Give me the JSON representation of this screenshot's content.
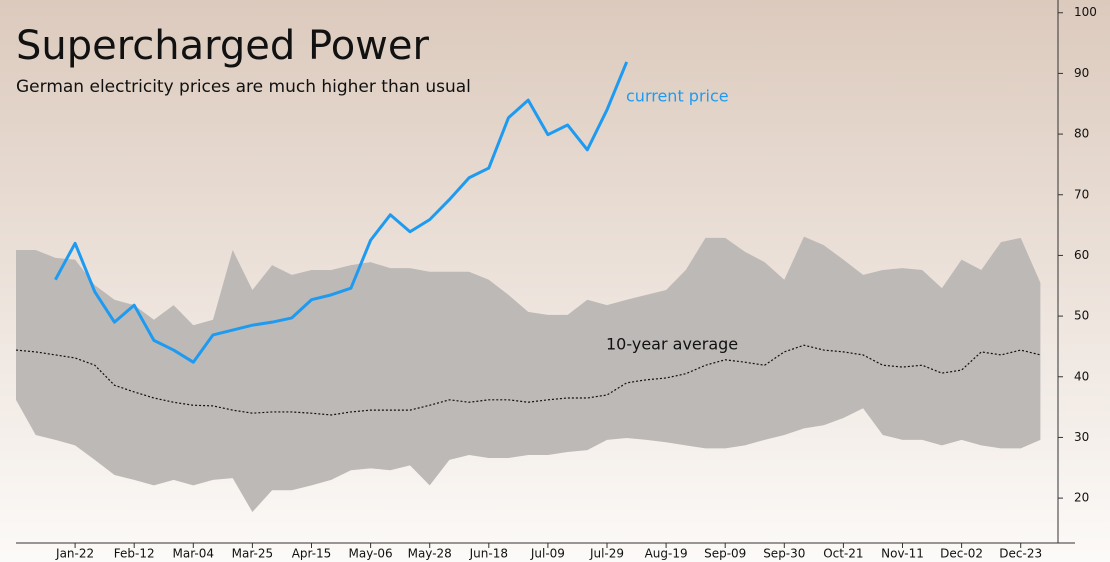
{
  "chart_data": {
    "type": "line",
    "title": "Supercharged Power",
    "subtitle": "German electricity prices are much higher than usual",
    "categories": [
      null,
      null,
      null,
      "Jan-22",
      null,
      null,
      "Feb-12",
      null,
      null,
      "Mar-04",
      null,
      null,
      "Mar-25",
      null,
      null,
      "Apr-15",
      null,
      null,
      "May-06",
      null,
      null,
      "May-28",
      null,
      null,
      "Jun-18",
      null,
      null,
      "Jul-09",
      null,
      null,
      "Jul-29",
      null,
      null,
      "Aug-19",
      null,
      null,
      "Sep-09",
      null,
      null,
      "Sep-30",
      null,
      null,
      "Oct-21",
      null,
      null,
      "Nov-11",
      null,
      null,
      "Dec-02",
      null,
      null,
      "Dec-23",
      null
    ],
    "series": [
      {
        "name": "current price",
        "color": "#1e9bf0",
        "values": [
          null,
          null,
          56,
          62,
          54,
          49,
          51.8,
          46,
          44.4,
          42.4,
          46.9,
          47.7,
          48.5,
          49,
          49.7,
          52.7,
          53.5,
          54.6,
          62.5,
          66.7,
          63.9,
          65.9,
          69.2,
          72.8,
          74.4,
          82.7,
          85.6,
          79.9,
          81.5,
          77.4,
          84,
          91.9,
          null,
          null,
          null,
          null,
          null,
          null,
          null,
          null,
          null,
          null,
          null,
          null,
          null,
          null,
          null,
          null,
          null,
          null,
          null,
          null,
          null
        ]
      },
      {
        "name": "10-year average",
        "color": "#111111",
        "dashed": true,
        "values": [
          44.4,
          44.1,
          43.6,
          43.1,
          41.9,
          38.6,
          37.5,
          36.5,
          35.8,
          35.3,
          35.2,
          34.5,
          34,
          34.2,
          34.2,
          34,
          33.7,
          34.2,
          34.5,
          34.5,
          34.5,
          35.3,
          36.2,
          35.8,
          36.2,
          36.2,
          35.8,
          36.2,
          36.5,
          36.5,
          37,
          39,
          39.5,
          39.8,
          40.5,
          41.9,
          42.8,
          42.4,
          41.9,
          44.1,
          45.2,
          44.4,
          44.1,
          43.6,
          41.9,
          41.6,
          41.9,
          40.6,
          41.1,
          44.1,
          43.6,
          44.4,
          43.6
        ]
      }
    ],
    "band": {
      "color": "#bdb9b7",
      "upper": [
        60.9,
        60.9,
        59.6,
        59.3,
        55.1,
        52.7,
        51.8,
        49.4,
        51.8,
        48.5,
        49.4,
        60.9,
        54.3,
        58.4,
        56.8,
        57.6,
        57.6,
        58.4,
        58.9,
        57.9,
        57.9,
        57.3,
        57.3,
        57.3,
        56,
        53.5,
        50.7,
        50.2,
        50.2,
        52.7,
        51.8,
        52.7,
        53.5,
        54.3,
        57.6,
        62.9,
        62.9,
        60.6,
        58.9,
        56,
        63.1,
        61.7,
        59.3,
        56.8,
        57.6,
        57.9,
        57.6,
        54.6,
        59.3,
        57.6,
        62.2,
        62.9,
        55.5
      ],
      "lower": [
        36.2,
        30.4,
        29.6,
        28.7,
        26.3,
        23.8,
        23,
        22.1,
        23,
        22.1,
        23,
        23.3,
        17.7,
        21.3,
        21.3,
        22.1,
        23,
        24.6,
        24.9,
        24.6,
        25.4,
        22.1,
        26.3,
        27.1,
        26.6,
        26.6,
        27.1,
        27.1,
        27.6,
        27.9,
        29.6,
        29.9,
        29.6,
        29.2,
        28.7,
        28.2,
        28.2,
        28.7,
        29.6,
        30.4,
        31.5,
        32,
        33.2,
        34.8,
        30.4,
        29.6,
        29.6,
        28.7,
        29.6,
        28.7,
        28.2,
        28.2,
        29.6
      ]
    },
    "ylim": [
      12.6,
      102.1
    ],
    "yticks": [
      20,
      30,
      40,
      50,
      60,
      70,
      80,
      90,
      100
    ],
    "y_axis_side": "right"
  }
}
